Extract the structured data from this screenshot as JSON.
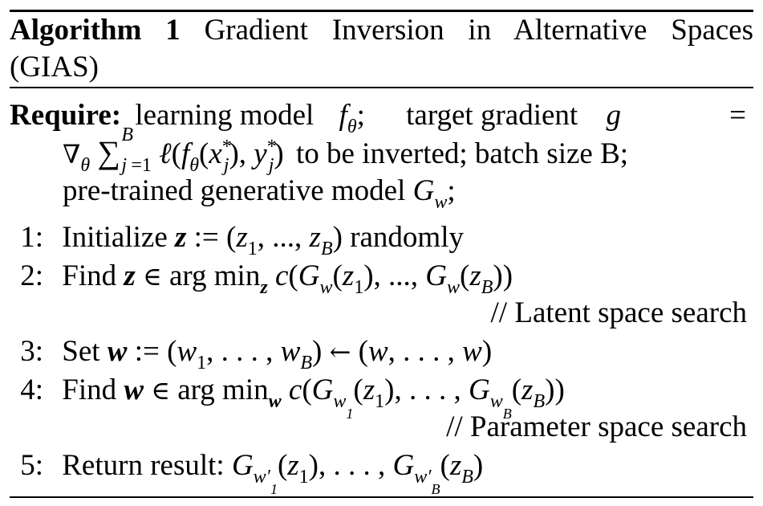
{
  "algorithm": {
    "label": "Algorithm 1",
    "title_line1": "Gradient Inversion in Alternative Spaces",
    "title_line2": "(GIAS)"
  },
  "require": {
    "label": "Require:",
    "line1_text": "learning model",
    "line1_text2": "target gradient",
    "line2_text": "to be inverted; batch size B;",
    "line3_text": "pre-trained generative model"
  },
  "steps": [
    {
      "num": "1:",
      "text": "Initialize",
      "suffix": "randomly"
    },
    {
      "num": "2:",
      "text": "Find"
    },
    {
      "num": "3:",
      "text": "Set"
    },
    {
      "num": "4:",
      "text": "Find"
    },
    {
      "num": "5:",
      "text": "Return result:"
    }
  ],
  "comments": {
    "latent": "// Latent space search",
    "parameter": "// Parameter space search"
  }
}
